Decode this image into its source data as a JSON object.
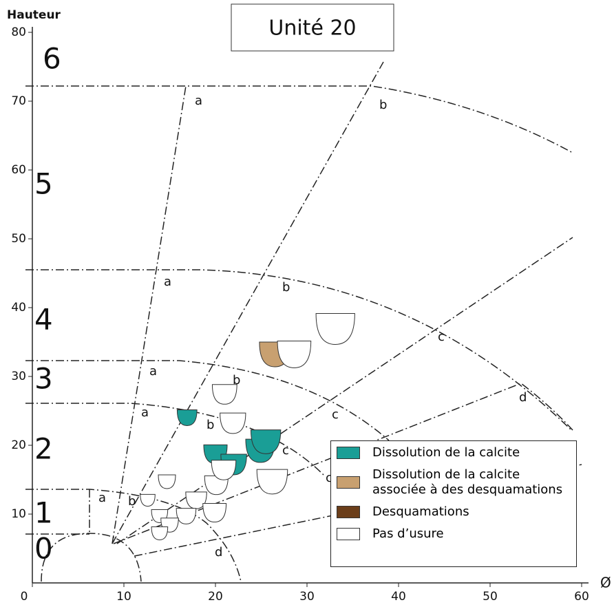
{
  "chart_data": {
    "type": "scatter",
    "title": "Unité 20",
    "x_label": "Ø",
    "y_label": "Hauteur",
    "xlim": [
      0,
      60
    ],
    "xticks": [
      0,
      10,
      20,
      30,
      40,
      50,
      60
    ],
    "ylim": [
      0,
      80
    ],
    "yticks": [
      10,
      20,
      30,
      40,
      50,
      60,
      70,
      80
    ],
    "zone_numbers": [
      "6",
      "5",
      "4",
      "3",
      "2",
      "1",
      "0"
    ],
    "zone_letters": [
      "a",
      "b",
      "a",
      "b",
      "c",
      "d",
      "a",
      "b",
      "c",
      "a",
      "b",
      "c",
      "c",
      "a",
      "b",
      "c",
      "d"
    ],
    "series": [
      {
        "name": "Dissolution de la calcite",
        "color": "#1a9e96",
        "x": [
          16.9,
          20,
          22,
          24.9,
          25.5
        ],
        "values": [
          24,
          18.7,
          17.2,
          19.2,
          20.5
        ]
      },
      {
        "name": "Dissolution de la calcite associée à des desquamations",
        "color": "#c8a070",
        "x": [
          26.5
        ],
        "values": [
          33.2
        ]
      },
      {
        "name": "Desquamations",
        "color": "#6b3e1a",
        "x": [],
        "values": []
      },
      {
        "name": "Pas d’usure",
        "color": "#ffffff",
        "x": [
          33.1,
          28.6,
          21,
          21.9,
          14.7,
          20.1,
          26.2,
          20.9,
          12.6,
          17.9,
          13.9,
          16.8,
          19.9,
          15,
          13.9
        ],
        "values": [
          36.9,
          33.2,
          27.4,
          23.2,
          14.7,
          14.2,
          14.7,
          16.4,
          12,
          12,
          9.7,
          9.7,
          10.2,
          8.4,
          7.2
        ]
      }
    ]
  }
}
